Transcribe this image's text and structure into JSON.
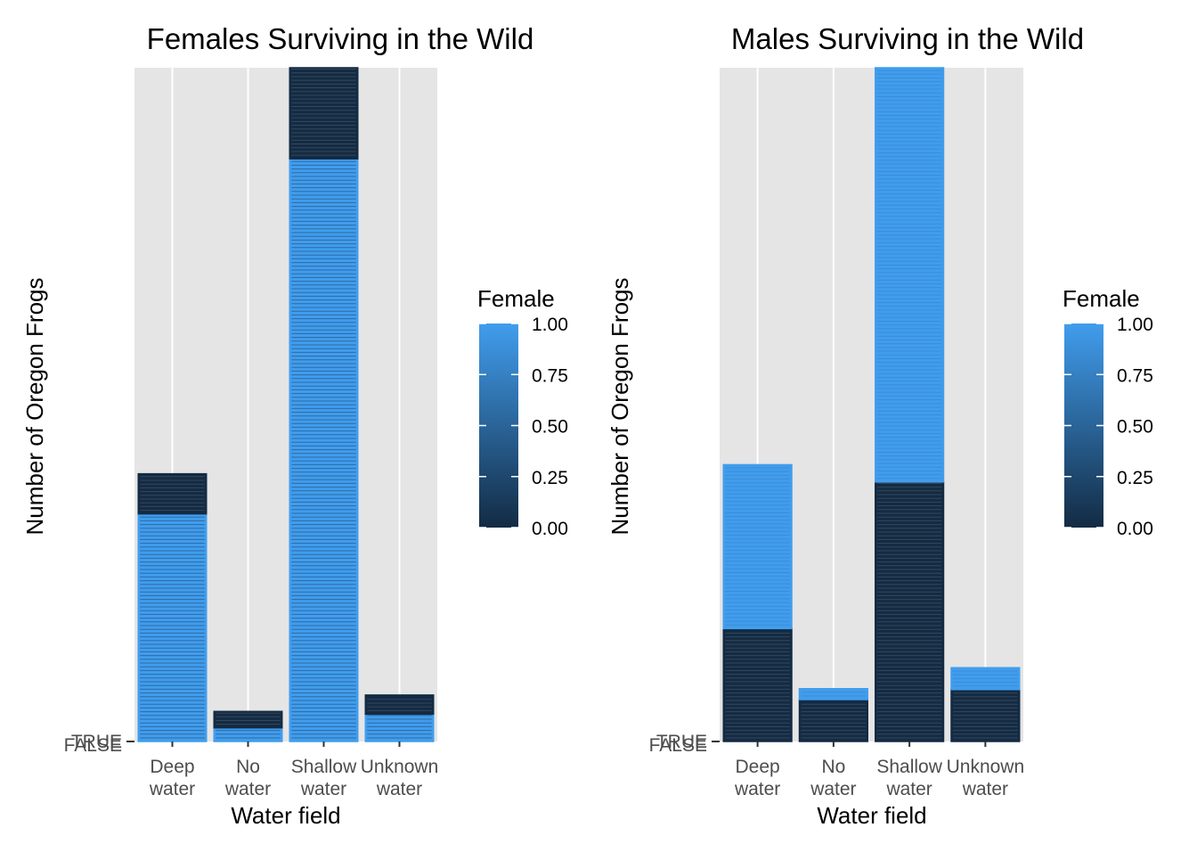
{
  "chart_data": [
    {
      "type": "bar",
      "stacked": true,
      "title": "Females Surviving in the Wild",
      "xlabel": "Water field",
      "ylabel": "Number of Oregon Frogs",
      "categories": [
        "Deep water",
        "No water",
        "Shallow water",
        "Unknown water"
      ],
      "category_lines": [
        [
          "Deep",
          "water"
        ],
        [
          "No",
          "water"
        ],
        [
          "Shallow",
          "water"
        ],
        [
          "Unknown",
          "water"
        ]
      ],
      "y_ticks": [
        "TRUE",
        "FALSE"
      ],
      "ylim": [
        0,
        74
      ],
      "series": [
        {
          "fill": 1.0,
          "values": [
            25,
            1.5,
            64,
            3
          ]
        },
        {
          "fill": 0.0,
          "values": [
            4.4,
            1.8,
            10,
            2.1
          ]
        }
      ],
      "legend": {
        "title": "Female",
        "position": "right",
        "ticks": [
          "1.00",
          "0.75",
          "0.50",
          "0.25",
          "0.00"
        ],
        "low_color": "#132B43",
        "high_color": "#419ded"
      },
      "grid": true
    },
    {
      "type": "bar",
      "stacked": true,
      "title": "Males Surviving in the Wild",
      "xlabel": "Water field",
      "ylabel": "Number of Oregon Frogs",
      "categories": [
        "Deep water",
        "No water",
        "Shallow water",
        "Unknown water"
      ],
      "category_lines": [
        [
          "Deep",
          "water"
        ],
        [
          "No",
          "water"
        ],
        [
          "Shallow",
          "water"
        ],
        [
          "Unknown",
          "water"
        ]
      ],
      "y_ticks": [
        "TRUE",
        "FALSE"
      ],
      "ylim": [
        0,
        74
      ],
      "series": [
        {
          "fill": 0.0,
          "values": [
            12.4,
            4.6,
            28.5,
            5.7
          ]
        },
        {
          "fill": 1.0,
          "values": [
            18,
            1.2,
            45.5,
            2.4
          ]
        }
      ],
      "legend": {
        "title": "Female",
        "position": "right",
        "ticks": [
          "1.00",
          "0.75",
          "0.50",
          "0.25",
          "0.00"
        ],
        "low_color": "#132B43",
        "high_color": "#419ded"
      },
      "grid": true
    }
  ]
}
